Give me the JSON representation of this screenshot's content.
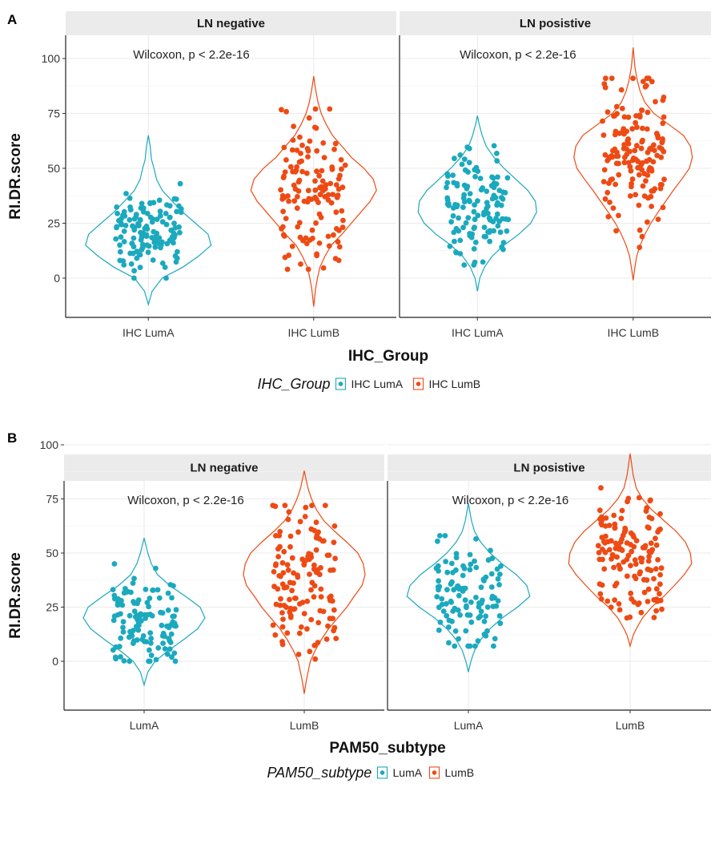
{
  "colors": {
    "LumA": "#1BA9BE",
    "LumB": "#EE4A14",
    "strip": "#EBEBEB",
    "grid": "#EBEBEB"
  },
  "chart_data": [
    {
      "panel_label": "A",
      "type": "violin",
      "xlabel": "IHC_Group",
      "ylabel": "RI.DR.score",
      "ylim": [
        -14,
        105
      ],
      "yticks": [
        "0",
        "25",
        "50",
        "75",
        "100"
      ],
      "legend": {
        "title": "IHC_Group",
        "entries": [
          "IHC LumA",
          "IHC LumB"
        ],
        "position": "bottom"
      },
      "facets": [
        {
          "strip": "LN negative",
          "annotation": "Wilcoxon, p < 2.2e-16",
          "categories": [
            "IHC LumA",
            "IHC LumB"
          ],
          "groups": [
            {
              "range": [
                -12,
                65
              ],
              "median": 20,
              "points": 130,
              "profile": [
                [
                  -12,
                  0
                ],
                [
                  -6,
                  0.06
                ],
                [
                  0,
                  0.22
                ],
                [
                  5,
                  0.55
                ],
                [
                  10,
                  0.8
                ],
                [
                  15,
                  1.0
                ],
                [
                  20,
                  0.95
                ],
                [
                  25,
                  0.75
                ],
                [
                  30,
                  0.55
                ],
                [
                  35,
                  0.38
                ],
                [
                  40,
                  0.22
                ],
                [
                  45,
                  0.13
                ],
                [
                  50,
                  0.09
                ],
                [
                  54,
                  0.05
                ],
                [
                  60,
                  0.03
                ],
                [
                  65,
                  0
                ]
              ],
              "jitter": [
                0,
                43
              ]
            },
            {
              "range": [
                -13,
                92
              ],
              "median": 40,
              "points": 130,
              "profile": [
                [
                  -13,
                  0
                ],
                [
                  -5,
                  0.03
                ],
                [
                  0,
                  0.06
                ],
                [
                  5,
                  0.1
                ],
                [
                  10,
                  0.18
                ],
                [
                  15,
                  0.28
                ],
                [
                  20,
                  0.45
                ],
                [
                  25,
                  0.6
                ],
                [
                  30,
                  0.75
                ],
                [
                  35,
                  0.9
                ],
                [
                  40,
                  1.0
                ],
                [
                  45,
                  0.95
                ],
                [
                  50,
                  0.8
                ],
                [
                  55,
                  0.6
                ],
                [
                  60,
                  0.45
                ],
                [
                  65,
                  0.3
                ],
                [
                  70,
                  0.2
                ],
                [
                  75,
                  0.12
                ],
                [
                  80,
                  0.07
                ],
                [
                  86,
                  0.03
                ],
                [
                  92,
                  0
                ]
              ],
              "jitter": [
                4,
                77
              ]
            }
          ]
        },
        {
          "strip": "LN posistive",
          "annotation": "Wilcoxon, p < 2.2e-16",
          "categories": [
            "IHC LumA",
            "IHC LumB"
          ],
          "groups": [
            {
              "range": [
                -6,
                74
              ],
              "median": 32,
              "points": 130,
              "profile": [
                [
                  -6,
                  0
                ],
                [
                  0,
                  0.04
                ],
                [
                  5,
                  0.12
                ],
                [
                  10,
                  0.25
                ],
                [
                  15,
                  0.45
                ],
                [
                  20,
                  0.7
                ],
                [
                  25,
                  0.9
                ],
                [
                  30,
                  1.0
                ],
                [
                  35,
                  0.98
                ],
                [
                  40,
                  0.85
                ],
                [
                  45,
                  0.65
                ],
                [
                  50,
                  0.45
                ],
                [
                  55,
                  0.28
                ],
                [
                  60,
                  0.15
                ],
                [
                  65,
                  0.08
                ],
                [
                  70,
                  0.03
                ],
                [
                  74,
                  0
                ]
              ],
              "jitter": [
                6,
                62
              ]
            },
            {
              "range": [
                -1,
                105
              ],
              "median": 55,
              "points": 150,
              "profile": [
                [
                  -1,
                  0
                ],
                [
                  5,
                  0.03
                ],
                [
                  10,
                  0.06
                ],
                [
                  15,
                  0.12
                ],
                [
                  20,
                  0.2
                ],
                [
                  25,
                  0.3
                ],
                [
                  30,
                  0.42
                ],
                [
                  35,
                  0.55
                ],
                [
                  40,
                  0.68
                ],
                [
                  45,
                  0.82
                ],
                [
                  50,
                  0.95
                ],
                [
                  55,
                  1.0
                ],
                [
                  60,
                  0.97
                ],
                [
                  65,
                  0.85
                ],
                [
                  70,
                  0.6
                ],
                [
                  75,
                  0.35
                ],
                [
                  80,
                  0.2
                ],
                [
                  85,
                  0.12
                ],
                [
                  90,
                  0.07
                ],
                [
                  96,
                  0.03
                ],
                [
                  105,
                  0
                ]
              ],
              "jitter": [
                14,
                91
              ]
            }
          ]
        }
      ]
    },
    {
      "panel_label": "B",
      "type": "violin",
      "xlabel": "PAM50_subtype",
      "ylabel": "RI.DR.score",
      "ylim": [
        -17,
        104
      ],
      "yticks": [
        "0",
        "25",
        "50",
        "75",
        "100"
      ],
      "legend": {
        "title": "PAM50_subtype",
        "entries": [
          "LumA",
          "LumB"
        ],
        "position": "bottom"
      },
      "facets": [
        {
          "strip": "LN negative",
          "annotation": "Wilcoxon, p < 2.2e-16",
          "categories": [
            "LumA",
            "LumB"
          ],
          "groups": [
            {
              "range": [
                -11,
                57
              ],
              "median": 18,
              "points": 120,
              "profile": [
                [
                  -11,
                  0
                ],
                [
                  -5,
                  0.06
                ],
                [
                  0,
                  0.18
                ],
                [
                  5,
                  0.4
                ],
                [
                  10,
                  0.65
                ],
                [
                  15,
                  0.88
                ],
                [
                  20,
                  1.0
                ],
                [
                  25,
                  0.92
                ],
                [
                  30,
                  0.68
                ],
                [
                  35,
                  0.42
                ],
                [
                  40,
                  0.22
                ],
                [
                  45,
                  0.12
                ],
                [
                  50,
                  0.06
                ],
                [
                  57,
                  0
                ]
              ],
              "jitter": [
                0,
                45
              ]
            },
            {
              "range": [
                -15,
                88
              ],
              "median": 38,
              "points": 130,
              "profile": [
                [
                  -15,
                  0
                ],
                [
                  -8,
                  0.04
                ],
                [
                  0,
                  0.1
                ],
                [
                  5,
                  0.18
                ],
                [
                  10,
                  0.28
                ],
                [
                  15,
                  0.4
                ],
                [
                  20,
                  0.55
                ],
                [
                  25,
                  0.7
                ],
                [
                  30,
                  0.82
                ],
                [
                  35,
                  0.95
                ],
                [
                  40,
                  1.0
                ],
                [
                  45,
                  0.97
                ],
                [
                  50,
                  0.88
                ],
                [
                  55,
                  0.7
                ],
                [
                  60,
                  0.5
                ],
                [
                  65,
                  0.32
                ],
                [
                  70,
                  0.2
                ],
                [
                  75,
                  0.12
                ],
                [
                  80,
                  0.06
                ],
                [
                  88,
                  0
                ]
              ],
              "jitter": [
                1,
                72
              ]
            }
          ]
        },
        {
          "strip": "LN posistive",
          "annotation": "Wilcoxon, p < 2.2e-16",
          "categories": [
            "LumA",
            "LumB"
          ],
          "groups": [
            {
              "range": [
                -5,
                73
              ],
              "median": 31,
              "points": 110,
              "profile": [
                [
                  -5,
                  0
                ],
                [
                  0,
                  0.04
                ],
                [
                  5,
                  0.1
                ],
                [
                  10,
                  0.2
                ],
                [
                  15,
                  0.35
                ],
                [
                  20,
                  0.55
                ],
                [
                  25,
                  0.8
                ],
                [
                  30,
                  1.0
                ],
                [
                  35,
                  0.95
                ],
                [
                  40,
                  0.78
                ],
                [
                  45,
                  0.55
                ],
                [
                  50,
                  0.35
                ],
                [
                  55,
                  0.2
                ],
                [
                  60,
                  0.1
                ],
                [
                  65,
                  0.05
                ],
                [
                  73,
                  0
                ]
              ],
              "jitter": [
                7,
                58
              ]
            },
            {
              "range": [
                7,
                96
              ],
              "median": 48,
              "points": 140,
              "profile": [
                [
                  7,
                  0
                ],
                [
                  12,
                  0.05
                ],
                [
                  15,
                  0.1
                ],
                [
                  20,
                  0.2
                ],
                [
                  25,
                  0.35
                ],
                [
                  30,
                  0.55
                ],
                [
                  35,
                  0.72
                ],
                [
                  40,
                  0.88
                ],
                [
                  45,
                  1.0
                ],
                [
                  50,
                  0.98
                ],
                [
                  55,
                  0.9
                ],
                [
                  60,
                  0.75
                ],
                [
                  65,
                  0.55
                ],
                [
                  70,
                  0.35
                ],
                [
                  75,
                  0.2
                ],
                [
                  80,
                  0.1
                ],
                [
                  86,
                  0.05
                ],
                [
                  96,
                  0
                ]
              ],
              "jitter": [
                20,
                82
              ]
            }
          ]
        }
      ]
    }
  ]
}
